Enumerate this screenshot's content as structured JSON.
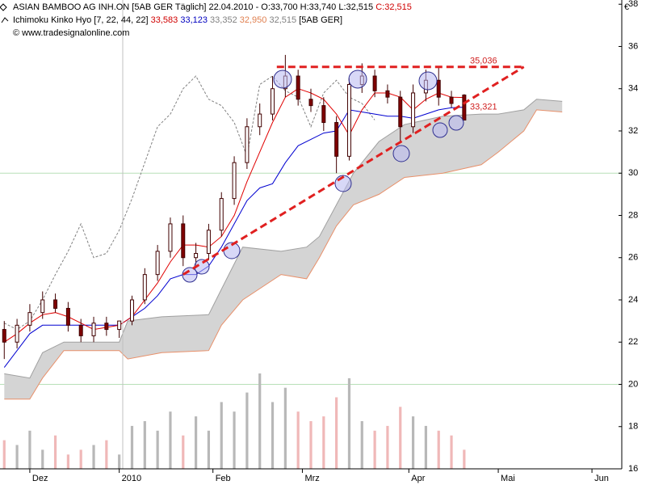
{
  "chart_data": {
    "type": "candlestick",
    "header": {
      "line1": "ASIAN BAMBOO AG  INH.ON [5AB GER  Täglich] 22.04.2010 - O:33,700 H:33,740 L:32,515",
      "close_label": "C:32,515",
      "indicator": "Ichimoku Kinko Hyo [7, 22, 44, 22]",
      "indicator_values": [
        {
          "text": "33,583",
          "color": "#d00000"
        },
        {
          "text": "33,123",
          "color": "#0000c0"
        },
        {
          "text": "33,352",
          "color": "#808080"
        },
        {
          "text": "32,950",
          "color": "#e08050"
        },
        {
          "text": "32,515",
          "color": "#808080"
        }
      ],
      "indicator_suffix": "[5AB GER]",
      "source": "© www.tradesignalonline.com",
      "currency": "€"
    },
    "xlim": [
      -1,
      145
    ],
    "xticks": [
      {
        "value": 6,
        "label": "Dez"
      },
      {
        "value": 27,
        "label": "2010"
      },
      {
        "value": 49,
        "label": "Feb"
      },
      {
        "value": 70,
        "label": "Mrz"
      },
      {
        "value": 95,
        "label": "Apr"
      },
      {
        "value": 116,
        "label": "Mai"
      },
      {
        "value": 138,
        "label": "Jun"
      }
    ],
    "ylim": [
      16,
      38.2
    ],
    "yticks": [
      16,
      18,
      20,
      22,
      24,
      26,
      28,
      30,
      32,
      34,
      36,
      38
    ],
    "hlines": [
      20,
      30
    ],
    "y2lim": [
      0,
      100
    ],
    "up_color": "#ffffff",
    "down_color": "#800000",
    "wick_color": "#400000",
    "x": [
      0,
      3,
      6,
      9,
      12,
      15,
      18,
      21,
      24,
      27,
      30,
      33,
      36,
      39,
      42,
      45,
      48,
      51,
      54,
      57,
      60,
      63,
      66,
      69,
      72,
      75,
      78,
      81,
      84,
      87,
      90,
      93,
      96,
      99,
      102,
      105,
      108
    ],
    "open": [
      22.6,
      22.0,
      22.8,
      23.4,
      24.0,
      23.6,
      22.8,
      22.3,
      22.9,
      22.6,
      23.0,
      24.0,
      25.2,
      26.3,
      27.6,
      26.0,
      26.2,
      27.3,
      28.8,
      30.5,
      32.2,
      32.8,
      34.0,
      34.6,
      33.5,
      33.2,
      32.4,
      30.8,
      34.2,
      34.6,
      33.9,
      33.6,
      32.2,
      33.8,
      34.4,
      33.6,
      33.7
    ],
    "high": [
      23.0,
      23.1,
      23.8,
      24.4,
      24.3,
      23.9,
      23.1,
      23.2,
      23.2,
      23.0,
      24.2,
      25.5,
      26.6,
      27.9,
      28.0,
      26.7,
      27.6,
      29.1,
      30.8,
      32.6,
      33.3,
      34.6,
      35.6,
      34.9,
      34.0,
      33.6,
      32.7,
      34.5,
      35.2,
      34.9,
      34.2,
      33.9,
      34.2,
      34.9,
      35.0,
      33.9,
      33.74
    ],
    "low": [
      21.2,
      21.7,
      22.5,
      23.1,
      23.4,
      22.5,
      22.0,
      22.0,
      22.3,
      22.2,
      22.8,
      23.8,
      24.9,
      26.0,
      25.6,
      25.5,
      25.9,
      27.0,
      28.5,
      30.2,
      31.8,
      32.5,
      33.6,
      33.2,
      32.9,
      32.0,
      30.0,
      30.6,
      33.8,
      33.6,
      33.3,
      31.5,
      31.9,
      33.4,
      33.2,
      33.1,
      32.515
    ],
    "close": [
      22.0,
      22.8,
      23.4,
      24.0,
      23.6,
      22.8,
      22.3,
      22.9,
      22.6,
      23.0,
      24.0,
      25.2,
      26.3,
      27.6,
      26.0,
      26.2,
      27.3,
      28.8,
      30.5,
      32.2,
      32.8,
      34.0,
      34.6,
      33.5,
      33.2,
      32.4,
      30.8,
      34.2,
      34.6,
      33.9,
      33.6,
      32.2,
      33.8,
      34.4,
      33.6,
      33.3,
      32.515
    ],
    "volume": {
      "up_color": "#b8b8b8",
      "down_color": "#f0b8b8",
      "values": [
        30,
        25,
        40,
        20,
        35,
        15,
        20,
        25,
        30,
        15,
        45,
        50,
        40,
        60,
        35,
        55,
        40,
        70,
        60,
        80,
        100,
        70,
        85,
        60,
        50,
        55,
        75,
        95,
        50,
        40,
        45,
        65,
        55,
        45,
        40,
        35,
        20
      ]
    },
    "tenkan": {
      "color": "#e00000",
      "values": [
        22.0,
        22.4,
        22.9,
        23.3,
        23.4,
        23.2,
        22.9,
        22.6,
        22.7,
        22.8,
        23.2,
        24.0,
        24.8,
        25.8,
        26.6,
        26.6,
        26.5,
        27.0,
        28.0,
        29.6,
        31.0,
        32.4,
        33.6,
        34.0,
        33.8,
        33.5,
        32.8,
        31.8,
        33.0,
        33.8,
        33.8,
        33.6,
        33.0,
        33.5,
        33.8,
        33.6,
        33.583
      ]
    },
    "kijun": {
      "color": "#0000d0",
      "values": [
        20.8,
        21.6,
        22.4,
        22.8,
        22.8,
        22.8,
        22.8,
        22.8,
        22.8,
        22.8,
        23.2,
        23.6,
        24.2,
        25.0,
        25.2,
        25.2,
        25.6,
        26.5,
        27.6,
        28.7,
        29.3,
        29.5,
        30.5,
        31.3,
        31.6,
        31.9,
        32.0,
        33.0,
        32.9,
        32.8,
        32.7,
        32.7,
        32.6,
        32.8,
        33.0,
        33.1,
        33.123
      ]
    },
    "chikou": {
      "color": "#808080",
      "x": [
        0,
        3,
        6,
        9,
        12,
        15,
        18,
        21,
        24,
        27,
        30,
        33,
        36,
        39,
        42,
        45,
        48,
        51,
        54,
        57,
        60,
        63,
        66,
        69,
        72,
        75,
        78,
        81,
        84,
        87
      ],
      "values": [
        22.9,
        22.6,
        23.0,
        24.0,
        25.2,
        26.3,
        27.6,
        26.0,
        26.2,
        27.3,
        28.8,
        30.5,
        32.2,
        32.8,
        34.0,
        34.6,
        33.5,
        33.2,
        32.4,
        30.8,
        34.2,
        34.6,
        33.9,
        33.6,
        32.2,
        33.8,
        34.4,
        33.6,
        33.3,
        32.515
      ]
    },
    "cloud": {
      "fill": "#d4d4d4",
      "edge_color": "#a0a0a0",
      "base_color": "#e8906a",
      "x": [
        0,
        6,
        9,
        14,
        27,
        29,
        37,
        48,
        51,
        56,
        65,
        71,
        74,
        78,
        82,
        88,
        94,
        103,
        112,
        116,
        122,
        125,
        131
      ],
      "span_a": [
        20.5,
        20.3,
        21.5,
        22.0,
        22.0,
        23.0,
        23.2,
        23.3,
        24.5,
        26.5,
        26.3,
        26.5,
        27.0,
        28.5,
        30.0,
        31.5,
        32.3,
        32.7,
        32.8,
        32.8,
        33.0,
        33.5,
        33.4
      ],
      "span_b": [
        19.3,
        19.3,
        20.3,
        21.6,
        21.6,
        21.2,
        21.5,
        21.6,
        22.8,
        24.0,
        25.2,
        25.0,
        26.0,
        27.5,
        28.5,
        29.0,
        29.8,
        30.0,
        30.4,
        31.0,
        32.0,
        33.0,
        32.9
      ]
    },
    "trendlines": {
      "color": "#e02020",
      "lines": [
        {
          "x": [
            64,
            122
          ],
          "y": [
            35.036,
            35.036
          ]
        },
        {
          "x": [
            42,
            122
          ],
          "y": [
            25.2,
            35.036
          ]
        }
      ]
    },
    "annotations": [
      {
        "value": 35.036,
        "label": "35,036"
      },
      {
        "value": 33.321,
        "label": "33,321"
      }
    ]
  }
}
